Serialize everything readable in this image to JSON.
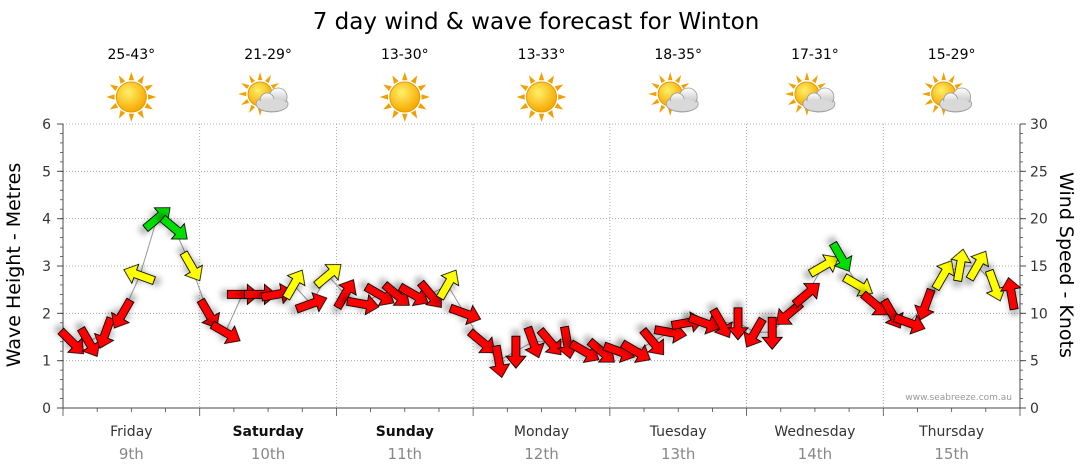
{
  "title": "7 day wind & wave forecast for Winton",
  "credit": "www.seabreeze.com.au",
  "y_left_label": "Wave Height - Metres",
  "y_right_label": "Wind Speed - Knots",
  "colors": {
    "gentle": "#ffff00",
    "moderate": "#00dd00",
    "strong": "#ff0000",
    "outline": "#000000",
    "grid": "#999999",
    "axis": "#4a4a4a"
  },
  "days": [
    {
      "name": "Friday",
      "date": "9th",
      "temp": "25-43°",
      "icon": "sun-icon",
      "weekend": false
    },
    {
      "name": "Saturday",
      "date": "10th",
      "temp": "21-29°",
      "icon": "partly-cloudy-icon",
      "weekend": true
    },
    {
      "name": "Sunday",
      "date": "11th",
      "temp": "13-30°",
      "icon": "sun-icon",
      "weekend": true
    },
    {
      "name": "Monday",
      "date": "12th",
      "temp": "13-33°",
      "icon": "sun-icon",
      "weekend": false
    },
    {
      "name": "Tuesday",
      "date": "13th",
      "temp": "18-35°",
      "icon": "partly-cloudy-icon",
      "weekend": false
    },
    {
      "name": "Wednesday",
      "date": "14th",
      "temp": "17-31°",
      "icon": "partly-cloudy-icon",
      "weekend": false
    },
    {
      "name": "Thursday",
      "date": "15th",
      "temp": "15-29°",
      "icon": "partly-cloudy-icon",
      "weekend": false
    }
  ],
  "chart_data": {
    "type": "line",
    "title": "7 day wind & wave forecast for Winton",
    "xlabel": "",
    "ylabel_left": "Wave Height - Metres",
    "ylabel_right": "Wind Speed - Knots",
    "ylim_left": [
      0,
      6
    ],
    "ylim_right": [
      0,
      30
    ],
    "yticks_left": [
      0,
      1,
      2,
      3,
      4,
      5,
      6
    ],
    "yticks_right": [
      0,
      5,
      10,
      15,
      20,
      25,
      30
    ],
    "categories": [
      "Friday 9th",
      "Saturday 10th",
      "Sunday 11th",
      "Monday 12th",
      "Tuesday 13th",
      "Wednesday 14th",
      "Thursday 15th"
    ],
    "grid": true,
    "legend": "none",
    "series": [
      {
        "x_days": [
          0.0,
          0.125,
          0.25,
          0.375,
          0.5,
          0.625,
          0.75,
          0.875,
          1.0,
          1.125,
          1.25,
          1.375,
          1.5,
          1.625,
          1.75,
          1.875,
          2.0,
          2.125,
          2.25,
          2.375,
          2.5,
          2.625,
          2.75,
          2.875,
          3.0,
          3.125,
          3.25,
          3.375,
          3.5,
          3.625,
          3.75,
          3.875,
          4.0,
          4.125,
          4.25,
          4.375,
          4.5,
          4.625,
          4.75,
          4.875,
          5.0,
          5.125,
          5.25,
          5.375,
          5.5,
          5.625,
          5.75,
          5.875,
          6.0,
          6.125,
          6.25,
          6.375,
          6.5,
          6.625,
          6.75,
          6.875
        ],
        "wind_knots": [
          7,
          7,
          8,
          10,
          14,
          20,
          19,
          15,
          10,
          8,
          12,
          12,
          12,
          13,
          11,
          14,
          12,
          11,
          12,
          12,
          12,
          12,
          13,
          10,
          7,
          5,
          6,
          7,
          7,
          7,
          6,
          6,
          6,
          6,
          7,
          8,
          9,
          9,
          9,
          9,
          8,
          8,
          10,
          12,
          15,
          16,
          13,
          11,
          10,
          9,
          11,
          14,
          15,
          15,
          13,
          12
        ],
        "wind_deg": [
          135,
          150,
          200,
          210,
          290,
          50,
          130,
          150,
          150,
          120,
          90,
          90,
          80,
          30,
          70,
          50,
          30,
          100,
          120,
          130,
          120,
          140,
          30,
          110,
          130,
          170,
          180,
          160,
          140,
          170,
          120,
          130,
          110,
          120,
          140,
          100,
          80,
          110,
          150,
          180,
          210,
          180,
          230,
          50,
          60,
          150,
          120,
          130,
          150,
          110,
          200,
          30,
          10,
          30,
          160,
          350
        ]
      }
    ]
  }
}
